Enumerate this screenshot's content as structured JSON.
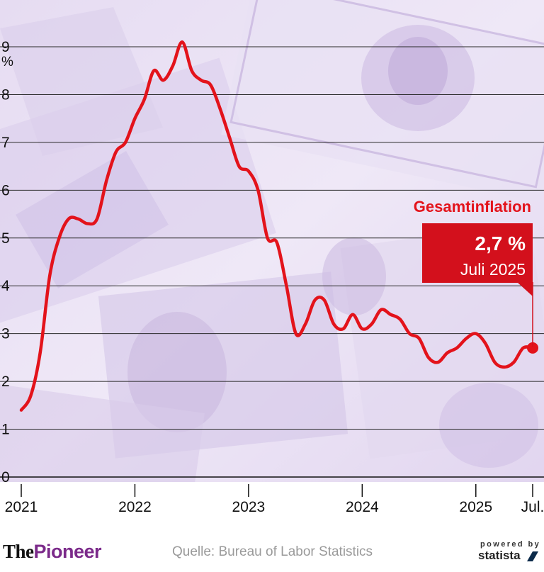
{
  "chart_data": {
    "type": "line",
    "ylim": [
      0,
      9
    ],
    "y_ticks": [
      0,
      1,
      2,
      3,
      4,
      5,
      6,
      7,
      8,
      9
    ],
    "y_unit": "%",
    "grid": true,
    "x_ticks": [
      "2021",
      "2022",
      "2023",
      "2024",
      "2025",
      "Jul."
    ],
    "series": [
      {
        "name": "Gesamtinflation",
        "color": "#e3131b",
        "x": [
          "2021-01",
          "2021-02",
          "2021-03",
          "2021-04",
          "2021-05",
          "2021-06",
          "2021-07",
          "2021-08",
          "2021-09",
          "2021-10",
          "2021-11",
          "2021-12",
          "2022-01",
          "2022-02",
          "2022-03",
          "2022-04",
          "2022-05",
          "2022-06",
          "2022-07",
          "2022-08",
          "2022-09",
          "2022-10",
          "2022-11",
          "2022-12",
          "2023-01",
          "2023-02",
          "2023-03",
          "2023-04",
          "2023-05",
          "2023-06",
          "2023-07",
          "2023-08",
          "2023-09",
          "2023-10",
          "2023-11",
          "2023-12",
          "2024-01",
          "2024-02",
          "2024-03",
          "2024-04",
          "2024-05",
          "2024-06",
          "2024-07",
          "2024-08",
          "2024-09",
          "2024-10",
          "2024-11",
          "2024-12",
          "2025-01",
          "2025-02",
          "2025-03",
          "2025-04",
          "2025-05",
          "2025-06",
          "2025-07"
        ],
        "values": [
          1.4,
          1.7,
          2.6,
          4.2,
          5.0,
          5.4,
          5.4,
          5.3,
          5.4,
          6.2,
          6.8,
          7.0,
          7.5,
          7.9,
          8.5,
          8.3,
          8.6,
          9.1,
          8.5,
          8.3,
          8.2,
          7.7,
          7.1,
          6.5,
          6.4,
          6.0,
          5.0,
          4.9,
          4.0,
          3.0,
          3.2,
          3.7,
          3.7,
          3.2,
          3.1,
          3.4,
          3.1,
          3.2,
          3.5,
          3.4,
          3.3,
          3.0,
          2.9,
          2.5,
          2.4,
          2.6,
          2.7,
          2.9,
          3.0,
          2.8,
          2.4,
          2.3,
          2.4,
          2.7,
          2.7
        ]
      }
    ],
    "annotation": {
      "label": "Gesamtinflation",
      "value_text": "2,7 %",
      "date_text": "Juli 2025"
    }
  },
  "footer": {
    "logo_the": "The",
    "logo_pioneer": "Pioneer",
    "source": "Quelle: Bureau of Labor Statistics",
    "powered": "powered by",
    "brand": "statista"
  },
  "colors": {
    "line": "#e3131b",
    "callout_bg": "#d3101c",
    "background_tint": "#ece4f5",
    "grid": "#2a2a2a"
  }
}
